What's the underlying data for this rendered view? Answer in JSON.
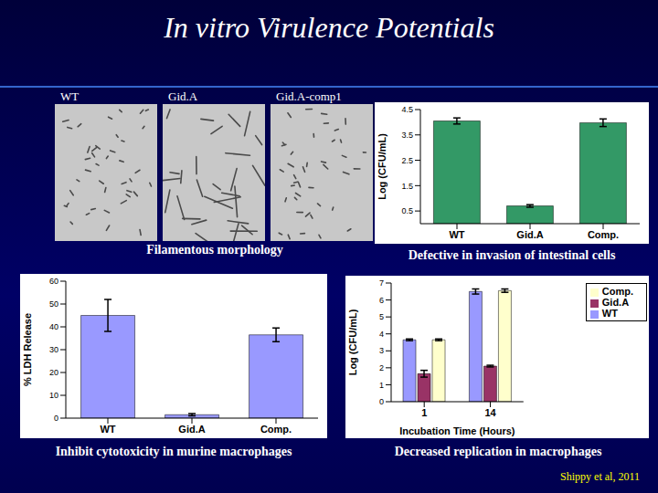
{
  "title": "In vitro Virulence Potentials",
  "citation": "Shippy et al, 2011",
  "images": {
    "labels": [
      "WT",
      "Gid.A",
      "Gid.A-comp1"
    ],
    "caption": "Filamentous morphology"
  },
  "chart_data": [
    {
      "type": "bar",
      "caption": "Defective in invasion of intestinal cells",
      "y_label": "Log (CFU/mL)",
      "categories": [
        "WT",
        "Gid.A",
        "Comp."
      ],
      "values": [
        4.05,
        0.7,
        3.98
      ],
      "errors": [
        0.12,
        0.05,
        0.15
      ],
      "color": "#339966",
      "ylim": [
        0,
        4.5
      ],
      "yticks": [
        0,
        0.5,
        1,
        1.5,
        2,
        2.5,
        3,
        3.5,
        4,
        4.5
      ],
      "grid": false
    },
    {
      "type": "bar",
      "caption": "Inhibit cytotoxicity in murine macrophages",
      "y_label": "% LDH Release",
      "categories": [
        "WT",
        "Gid.A",
        "Comp."
      ],
      "values": [
        45,
        1.5,
        36.5
      ],
      "errors": [
        7,
        0.5,
        3
      ],
      "color": "#9999ff",
      "ylim": [
        0,
        60
      ],
      "yticks": [
        0,
        10,
        20,
        30,
        40,
        50,
        60
      ],
      "grid": false
    },
    {
      "type": "bar",
      "caption": "Decreased replication in macrophages",
      "y_label": "Log (CFU/mL)",
      "x_label": "Incubation Time (Hours)",
      "categories": [
        "1",
        "14"
      ],
      "series": [
        {
          "name": "WT",
          "color": "#9999ff",
          "values": [
            3.65,
            6.5
          ],
          "errors": [
            0.05,
            0.15
          ]
        },
        {
          "name": "Gid.A",
          "color": "#993366",
          "values": [
            1.65,
            2.1
          ],
          "errors": [
            0.2,
            0.05
          ]
        },
        {
          "name": "Comp.",
          "color": "#ffffcc",
          "values": [
            3.65,
            6.55
          ],
          "errors": [
            0.05,
            0.1
          ]
        }
      ],
      "ylim": [
        0,
        7
      ],
      "yticks": [
        0,
        1,
        2,
        3,
        4,
        5,
        6,
        7
      ],
      "legend": "top-right",
      "grid": false
    }
  ]
}
